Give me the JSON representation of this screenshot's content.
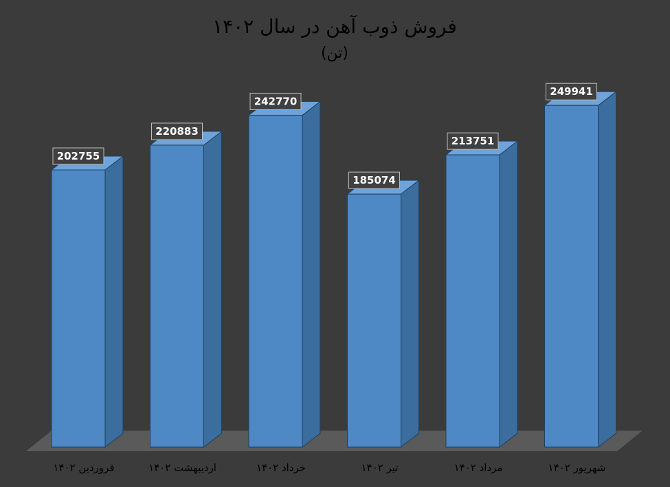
{
  "chart_data": {
    "type": "bar",
    "title": "فروش ذوب آهن در سال ۱۴۰۲",
    "subtitle": "(تن)",
    "categories": [
      "فروردین ۱۴۰۲",
      "اردیبهشت ۱۴۰۲",
      "خرداد ۱۴۰۲",
      "تیر ۱۴۰۲",
      "مرداد ۱۴۰۲",
      "شهریور ۱۴۰۲"
    ],
    "values": [
      202755,
      220883,
      242770,
      185074,
      213751,
      249941
    ],
    "ylim": [
      0,
      300000
    ],
    "grid": false,
    "legend": "none"
  },
  "colors": {
    "background": "#3b3b3b",
    "bar_front": "#4e89c6",
    "bar_side": "#3b6d9e",
    "bar_top": "#6fa3d9",
    "bar_stroke": "#1f4060",
    "floor": "#5a5a5a",
    "label_bg": "#404040"
  }
}
